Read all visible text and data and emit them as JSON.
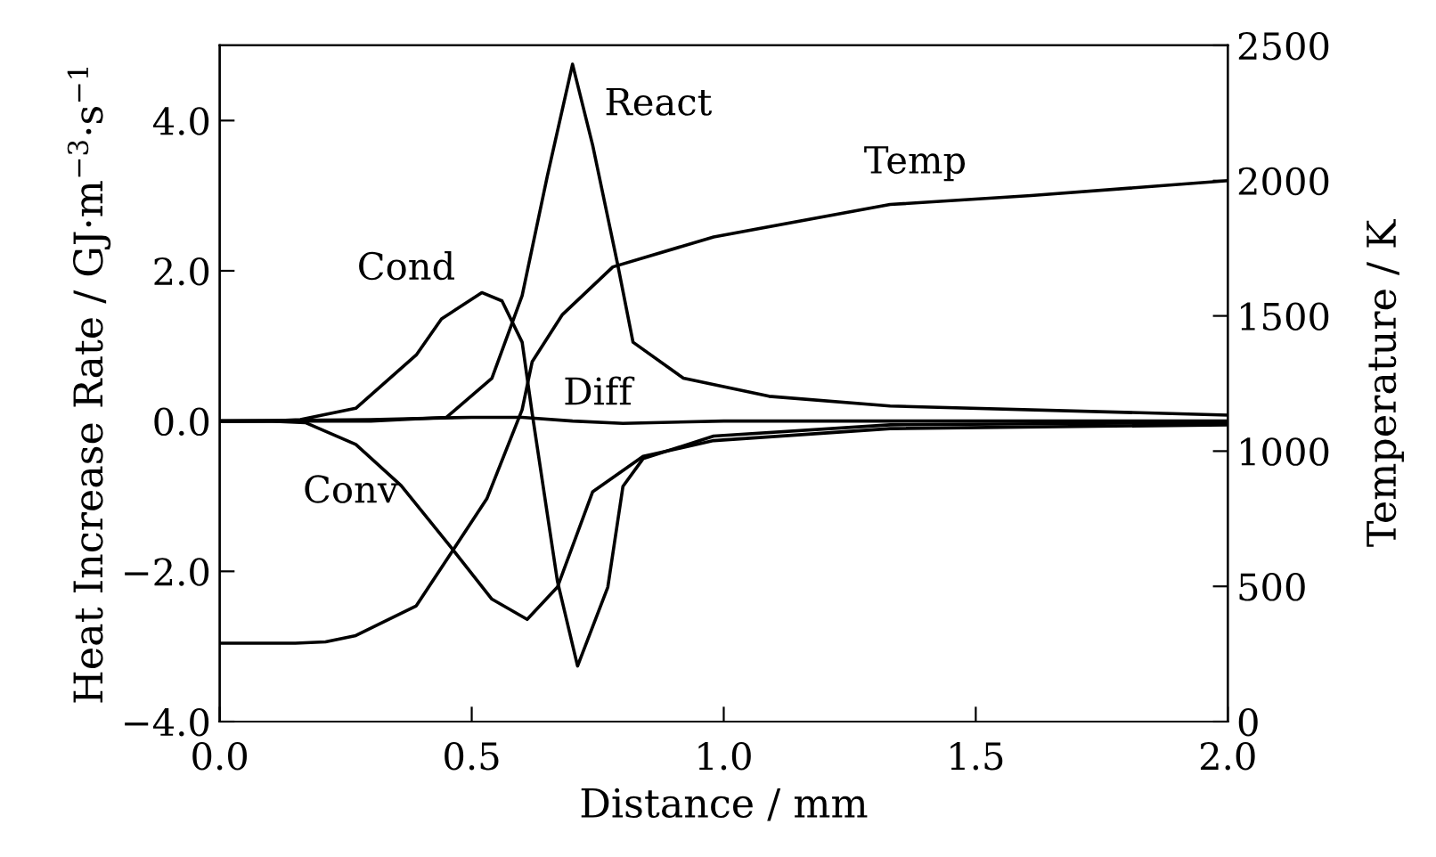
{
  "chart_data": {
    "type": "line",
    "xlabel": "Distance / mm",
    "ylabel": "Heat Increase Rate / GJ·m$^{−3}$·s$^{−1}$",
    "y2label": "Temperature / K",
    "xlim": [
      0.0,
      2.0
    ],
    "xticks": [
      {
        "value": 0,
        "label": "0.0"
      },
      0.5,
      {
        "value": 1,
        "label": "1.0"
      },
      1.5,
      {
        "value": 2,
        "label": "2.0"
      }
    ],
    "ylim": [
      -4.0,
      5.0
    ],
    "yticks": [
      {
        "value": -4,
        "label": "−4.0"
      },
      {
        "value": -2,
        "label": "−2.0"
      },
      {
        "value": 0,
        "label": "0.0"
      },
      {
        "value": 2,
        "label": "2.0"
      },
      {
        "value": 4,
        "label": "4.0"
      }
    ],
    "y2lim": [
      0,
      2500
    ],
    "y2ticks": [
      0,
      500,
      1000,
      1500,
      2000,
      2500
    ],
    "grid": false,
    "legend": false,
    "marker": "none",
    "line_style": "solid",
    "series": [
      {
        "name": "Cond",
        "color": "#000000",
        "x": [
          0.0,
          0.1,
          0.16,
          0.27,
          0.39,
          0.44,
          0.52,
          0.56,
          0.6,
          0.62,
          0.67,
          0.71,
          0.77,
          0.8,
          0.84,
          0.98,
          1.33,
          2.0
        ],
        "values": [
          0.0,
          0.0,
          0.02,
          0.17,
          0.88,
          1.36,
          1.71,
          1.6,
          1.05,
          0.1,
          -2.13,
          -3.26,
          -2.21,
          -0.87,
          -0.5,
          -0.2,
          -0.05,
          -0.02
        ]
      },
      {
        "name": "Conv",
        "color": "#000000",
        "x": [
          0.0,
          0.1,
          0.17,
          0.27,
          0.36,
          0.46,
          0.54,
          0.61,
          0.67,
          0.74,
          0.84,
          0.98,
          1.33,
          2.0
        ],
        "values": [
          0.0,
          0.0,
          -0.02,
          -0.31,
          -0.86,
          -1.69,
          -2.37,
          -2.64,
          -2.21,
          -0.94,
          -0.47,
          -0.26,
          -0.1,
          -0.05
        ]
      },
      {
        "name": "React",
        "color": "#000000",
        "x": [
          0.0,
          0.3,
          0.45,
          0.54,
          0.6,
          0.65,
          0.7,
          0.74,
          0.79,
          0.82,
          0.92,
          1.09,
          1.33,
          2.0
        ],
        "values": [
          0.0,
          0.0,
          0.05,
          0.57,
          1.67,
          3.26,
          4.75,
          3.67,
          2.07,
          1.05,
          0.57,
          0.33,
          0.2,
          0.08
        ]
      },
      {
        "name": "Diff",
        "color": "#000000",
        "x": [
          0.0,
          0.3,
          0.5,
          0.6,
          0.7,
          0.8,
          1.0,
          2.0
        ],
        "values": [
          0.0,
          0.02,
          0.05,
          0.05,
          0.0,
          -0.03,
          0.0,
          0.0
        ]
      },
      {
        "name": "Temp",
        "color": "#000000",
        "axis": "y2",
        "x": [
          0.0,
          0.15,
          0.21,
          0.27,
          0.39,
          0.46,
          0.53,
          0.6,
          0.62,
          0.68,
          0.78,
          0.98,
          1.33,
          1.61,
          2.0
        ],
        "values": [
          290,
          290,
          295,
          318,
          428,
          626,
          824,
          1153,
          1331,
          1505,
          1681,
          1792,
          1912,
          1945,
          2000
        ]
      }
    ]
  }
}
